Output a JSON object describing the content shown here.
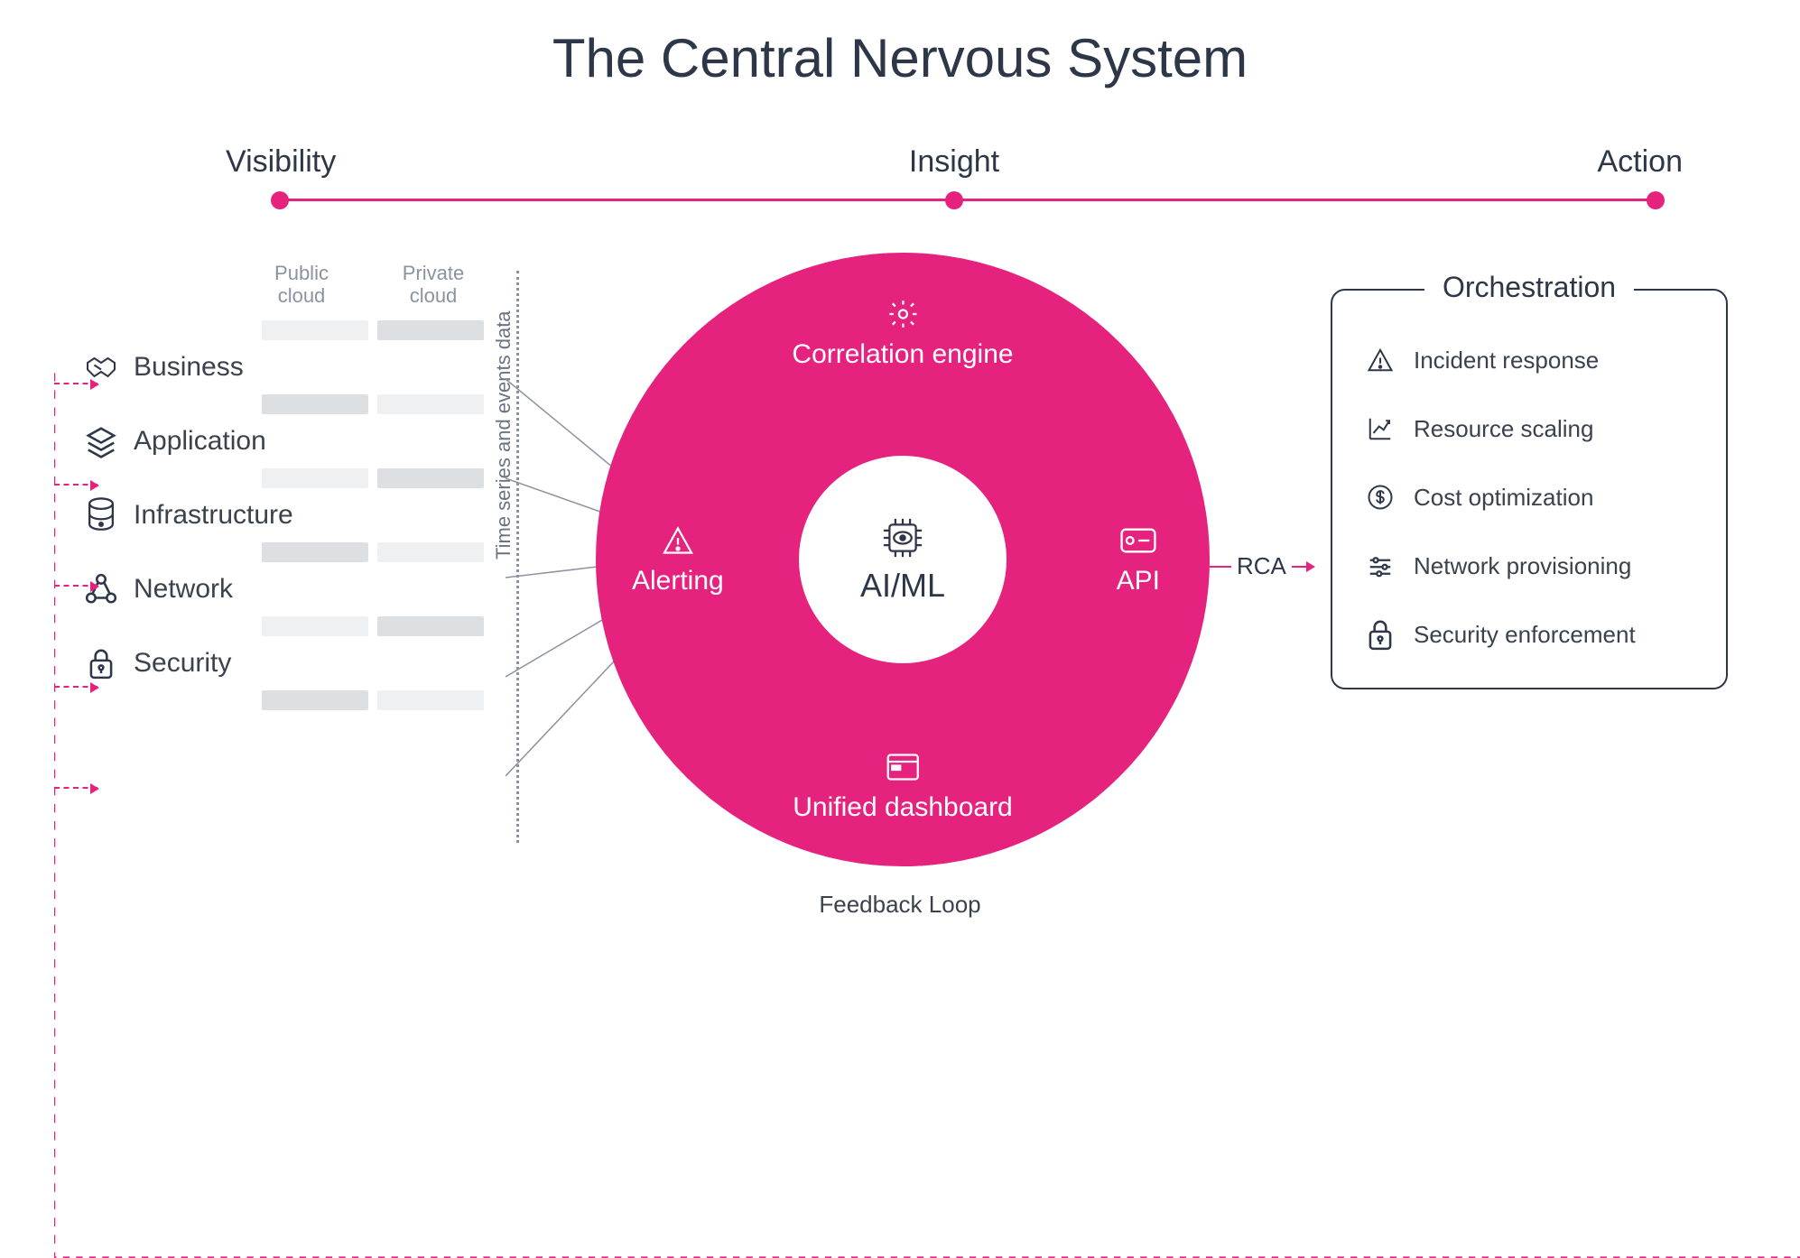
{
  "title": "The Central Nervous System",
  "title_fontsize": 60,
  "title_color": "#2d3748",
  "background_color": "#ffffff",
  "axis": {
    "label_fontsize": 34,
    "line_color": "#e6227f",
    "node_color": "#e6227f",
    "labels": [
      "Visibility",
      "Insight",
      "Action"
    ]
  },
  "visibility": {
    "header_public": "Public\ncloud",
    "header_private": "Private\ncloud",
    "header_color": "#8a939f",
    "bar_colors": {
      "light": "#eef0f2",
      "dark": "#dde0e3"
    },
    "bar_pattern": [
      [
        "light",
        "dark"
      ],
      [
        "dark",
        "light"
      ],
      [
        "light",
        "dark"
      ],
      [
        "dark",
        "light"
      ],
      [
        "light",
        "dark"
      ],
      [
        "dark",
        "light"
      ]
    ],
    "bar_row_height": 34,
    "bar_widths": {
      "public": 118,
      "private": 118
    },
    "layers": [
      {
        "key": "business",
        "label": "Business",
        "icon": "handshake"
      },
      {
        "key": "application",
        "label": "Application",
        "icon": "layers"
      },
      {
        "key": "infrastructure",
        "label": "Infrastructure",
        "icon": "server-stack"
      },
      {
        "key": "network",
        "label": "Network",
        "icon": "nodes"
      },
      {
        "key": "security",
        "label": "Security",
        "icon": "lock"
      }
    ]
  },
  "timeseries_divider": {
    "label": "Time series and events data",
    "style": "dotted",
    "color": "#8a939f"
  },
  "connectors": {
    "color": "#8a939f",
    "width": 1
  },
  "donut": {
    "diameter": 680,
    "hole_diameter": 230,
    "fill_color": "#e6227f",
    "text_color": "#ffffff",
    "center": {
      "label": "AI/ML",
      "icon": "chip-eye",
      "label_color": "#2d3748"
    },
    "items": {
      "top": {
        "label": "Correlation engine",
        "icon": "gear"
      },
      "bottom": {
        "label": "Unified dashboard",
        "icon": "dashboard"
      },
      "left": {
        "label": "Alerting",
        "icon": "warn"
      },
      "right": {
        "label": "API",
        "icon": "api-card"
      }
    }
  },
  "rca": {
    "label": "RCA",
    "arrow_color": "#e6227f"
  },
  "orchestration": {
    "title": "Orchestration",
    "border_color": "#2d3748",
    "border_radius": 16,
    "items": [
      {
        "label": "Incident response",
        "icon": "warn"
      },
      {
        "label": "Resource scaling",
        "icon": "chart-up"
      },
      {
        "label": "Cost optimization",
        "icon": "dollar"
      },
      {
        "label": "Network provisioning",
        "icon": "sliders"
      },
      {
        "label": "Security enforcement",
        "icon": "lock"
      }
    ]
  },
  "feedback_loop": {
    "label": "Feedback Loop",
    "color": "#e6227f",
    "style": "dashed"
  },
  "layer_arrows": {
    "color": "#e6227f",
    "style": "dashed",
    "y_offsets": [
      44,
      156,
      268,
      380,
      492
    ]
  }
}
